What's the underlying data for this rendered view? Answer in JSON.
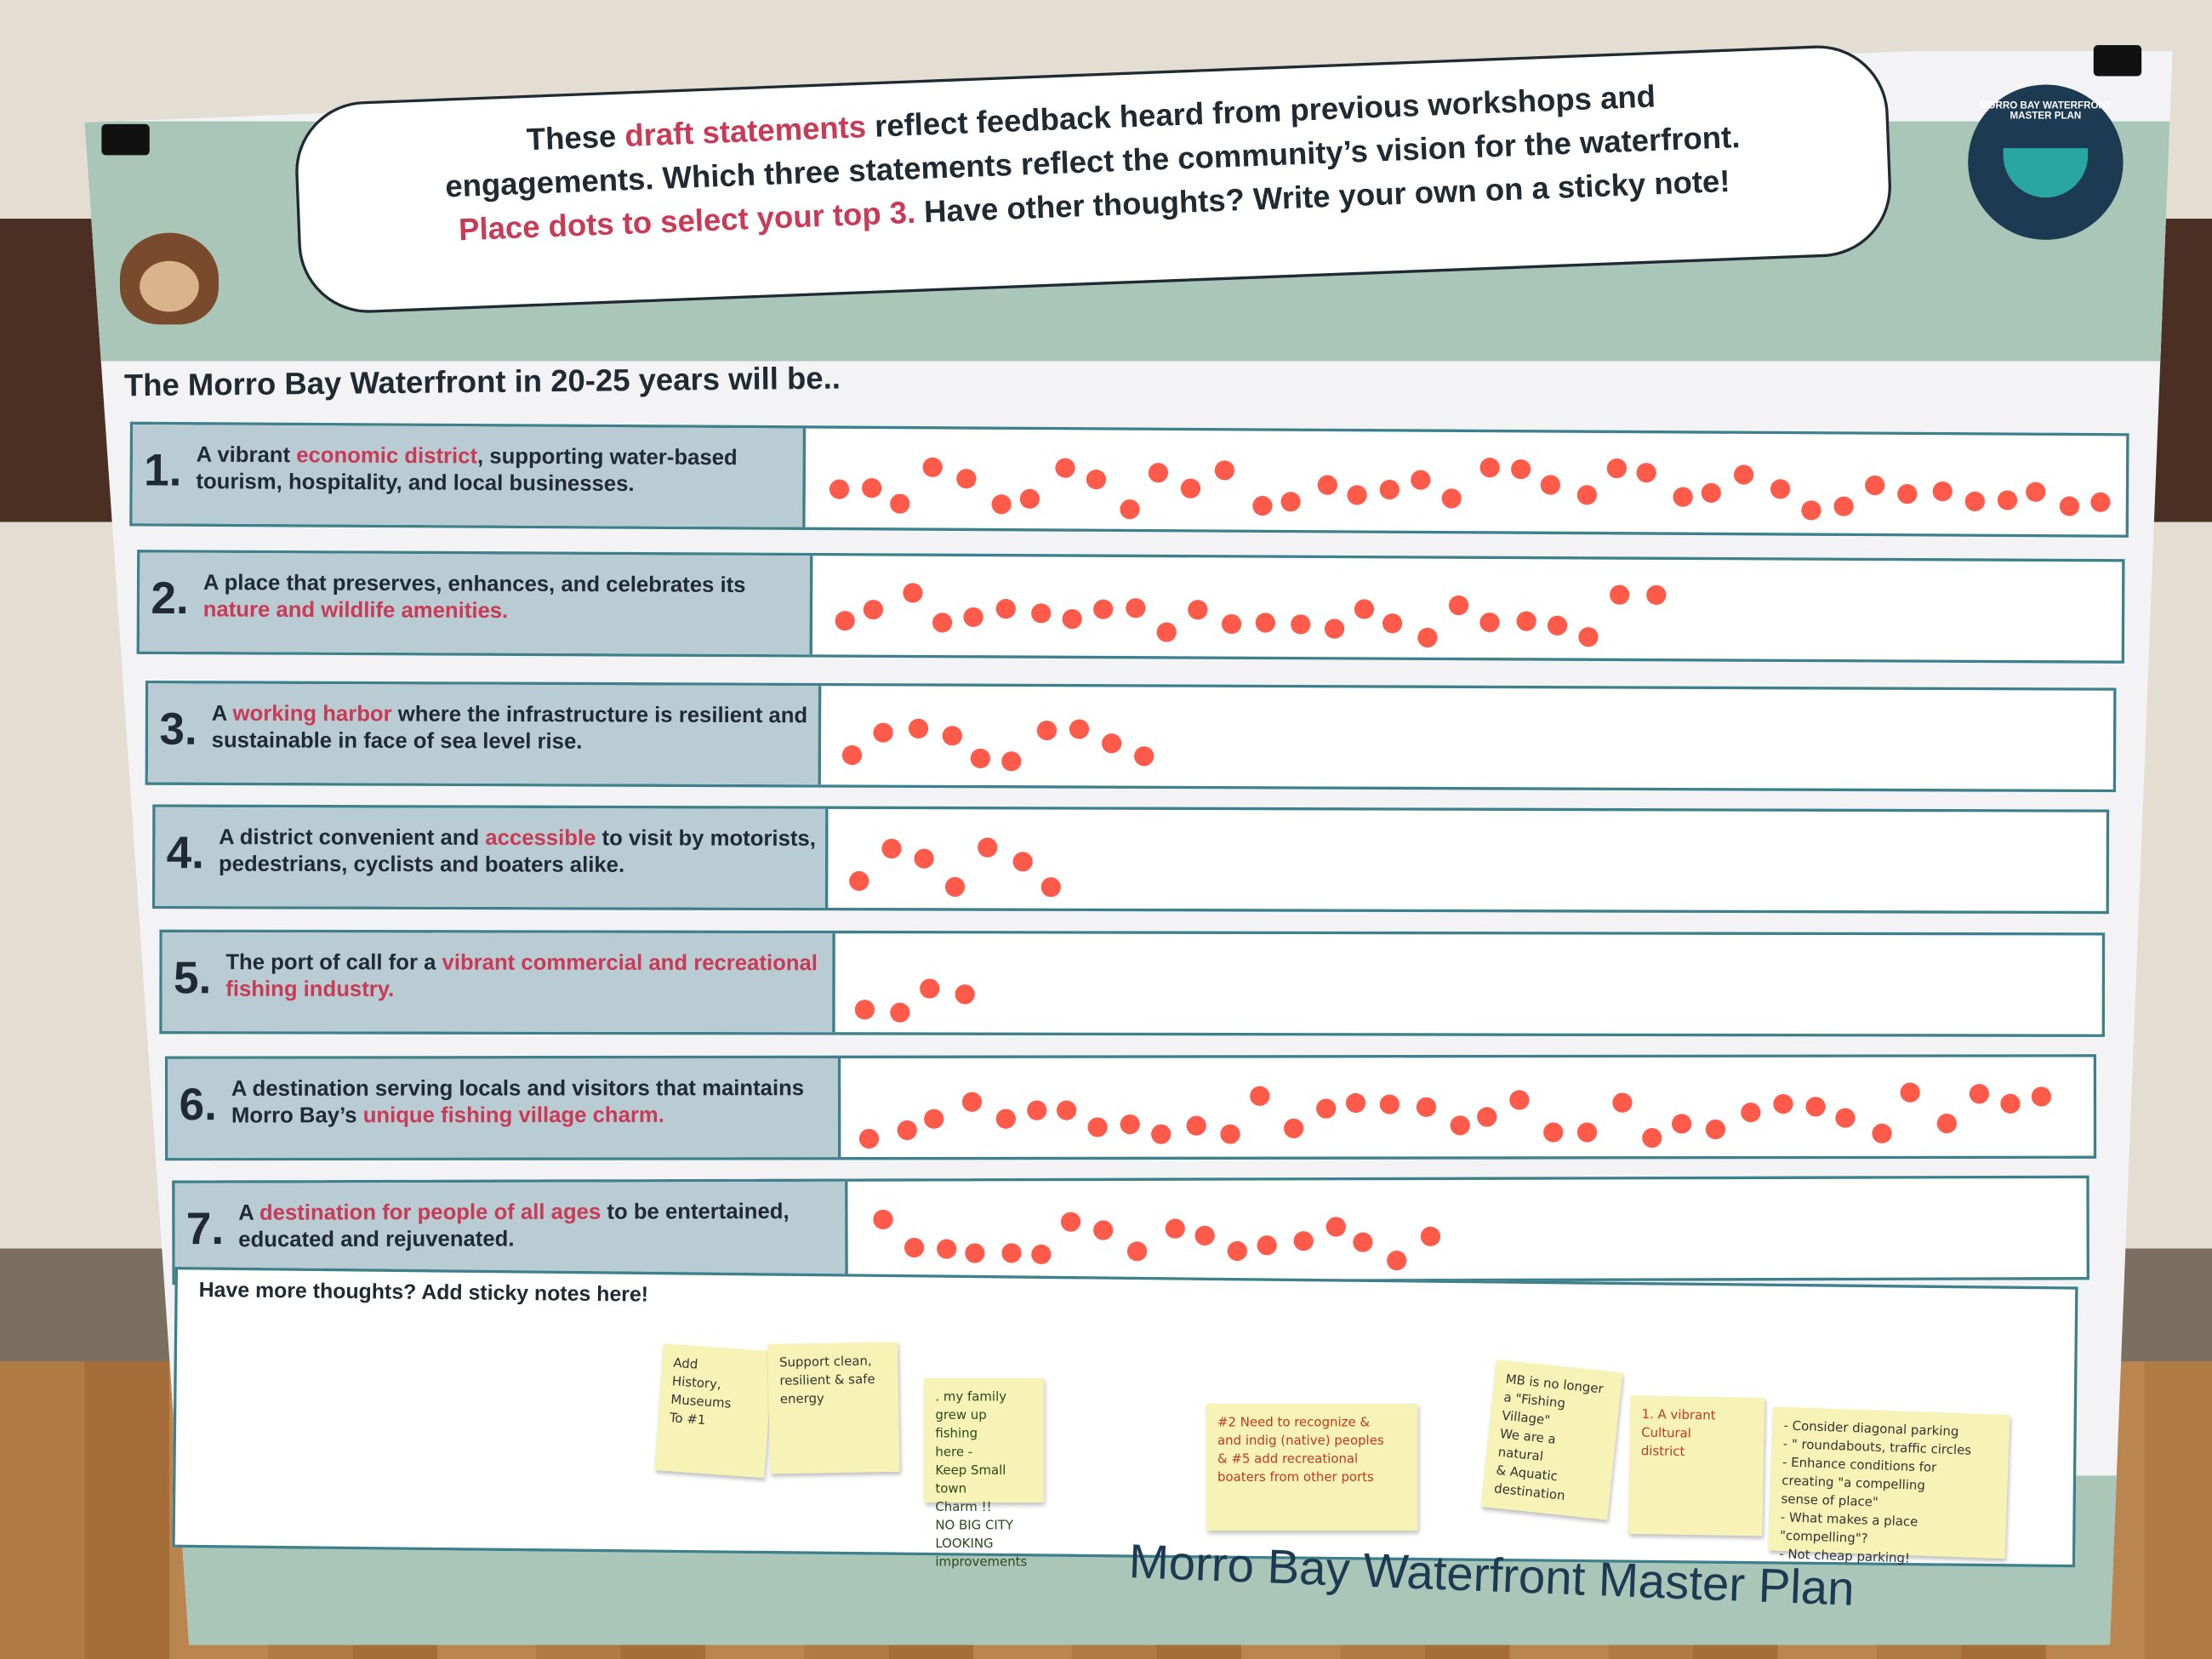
{
  "header": {
    "line1_pre": "These ",
    "line1_hl": "draft statements",
    "line1_post": " reflect feedback heard from previous workshops and",
    "line2": "engagements. Which three statements reflect the community’s vision for the waterfront.",
    "line3_hl": "Place dots to select your top 3.",
    "line3_post": " Have other thoughts? Write your own on a sticky note!"
  },
  "logo": {
    "text": "MORRO BAY WATERFRONT MASTER PLAN"
  },
  "heading": "The Morro Bay Waterfront in 20-25 years will be..",
  "colors": {
    "accent": "#c83a55",
    "dot": "#ff5a4a",
    "teal": "#3d7f8a",
    "navy": "#1c3b52"
  },
  "statements": [
    {
      "num": "1.",
      "pre": "A vibrant ",
      "hl": "economic district",
      "post": ", supporting water-based tourism, hospitality, and local businesses.",
      "dots": 40
    },
    {
      "num": "2.",
      "pre": "A place that preserves, enhances, and celebrates its ",
      "hl": "nature and wildlife amenities.",
      "post": "",
      "dots": 26
    },
    {
      "num": "3.",
      "pre": "A ",
      "hl": "working harbor",
      "post": " where the infrastructure is resilient and sustainable in face of sea level rise.",
      "dots": 10
    },
    {
      "num": "4.",
      "pre": "A district convenient and ",
      "hl": "accessible",
      "post": " to visit by motorists, pedestrians, cyclists and boaters alike.",
      "dots": 7
    },
    {
      "num": "5.",
      "pre": "The port of call for a ",
      "hl": "vibrant commercial and recreational fishing industry.",
      "post": "",
      "dots": 4
    },
    {
      "num": "6.",
      "pre": "A destination serving locals and visitors that maintains Morro Bay’s ",
      "hl": "unique fishing village charm.",
      "post": "",
      "dots": 37
    },
    {
      "num": "7.",
      "pre": "A ",
      "hl": "destination for people of all ages",
      "post": " to be entertained, educated and rejuvenated.",
      "dots": 18
    }
  ],
  "notes": {
    "title": "Have more thoughts? Add sticky notes here!",
    "items": [
      "Add\nHistory,\nMuseums\nTo #1",
      "Support clean,\nresilient & safe\nenergy",
      ". my family\ngrew up fishing\nhere -\nKeep Small town\nCharm !!\nNO BIG CITY\nLOOKING improvements",
      "#2 Need to recognize &\nand indig (native) peoples\n& #5 add recreational\nboaters from other ports",
      "MB is no longer\na \"Fishing\nVillage\"\nWe are a natural\n& Aquatic destination",
      "1. A vibrant\nCultural\ndistrict",
      "- Consider diagonal parking\n- \" roundabouts, traffic circles\n- Enhance conditions for\ncreating \"a compelling\nsense of place\"\n- What makes a place \"compelling\"?\n- Not cheap parking!"
    ]
  },
  "footer": "Morro Bay Waterfront Master Plan"
}
